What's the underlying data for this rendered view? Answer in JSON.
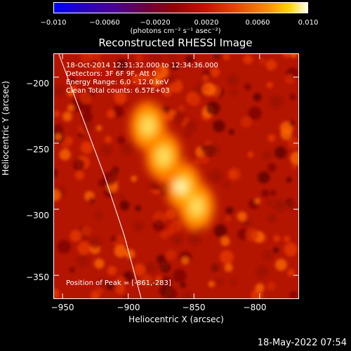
{
  "colorbar": {
    "ticks": [
      "−0.010",
      "−0.0060",
      "−0.0020",
      "0.0020",
      "0.0060",
      "0.010"
    ],
    "unit_label": "(photons cm⁻² s⁻¹ asec⁻²)"
  },
  "chart_data": {
    "type": "heatmap",
    "title": "Reconstructed RHESSI Image",
    "xlabel": "Heliocentric X (arcsec)",
    "ylabel": "Heliocentric Y (arcsec)",
    "xlim": [
      -957,
      -770
    ],
    "ylim": [
      -368,
      -182
    ],
    "xticks": [
      -950,
      -900,
      -850,
      -800
    ],
    "yticks": [
      -200,
      -250,
      -300,
      -350
    ],
    "xtick_labels": [
      "−950",
      "−900",
      "−850",
      "−800"
    ],
    "ytick_labels": [
      "−200",
      "−250",
      "−300",
      "−350"
    ],
    "color_range": [
      -0.01,
      0.01
    ],
    "peak": [
      -861,
      -283
    ],
    "source_ridge": [
      [
        -885,
        -237
      ],
      [
        -873,
        -260
      ],
      [
        -858,
        -283
      ],
      [
        -848,
        -298
      ]
    ],
    "limb_curve": [
      [
        -953,
        -182
      ],
      [
        -935,
        -230
      ],
      [
        -918,
        -275
      ],
      [
        -903,
        -320
      ],
      [
        -890,
        -368
      ]
    ],
    "info_lines": [
      "18-Oct-2014 12:31:32.000 to 12:34:36.000",
      "Detectors: 3F 6F 9F, Att 0",
      "Energy Range: 6.0 - 12.0 keV",
      "Clean     Total counts: 6.57E+03"
    ],
    "peak_label": "Position of Peak = [-861,-283]"
  },
  "footer": {
    "date": "18-May-2022 07:54"
  }
}
